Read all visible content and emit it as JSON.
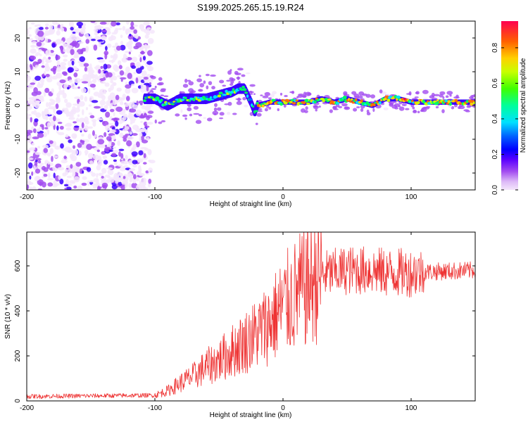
{
  "title": "S199.2025.265.15.19.R24",
  "chart_data": [
    {
      "type": "heatmap",
      "name": "spectrogram",
      "xlabel": "Height of straight line (km)",
      "ylabel": "Frequency (Hz)",
      "xlim": [
        -200,
        150
      ],
      "ylim": [
        -25,
        25
      ],
      "xticks": [
        -200,
        -100,
        0,
        100
      ],
      "yticks": [
        -20,
        -10,
        0,
        10,
        20
      ],
      "colorbar": {
        "label": "Normalized spectral amplitude",
        "range": [
          0,
          0.95
        ],
        "ticks": [
          0.0,
          0.2,
          0.4,
          0.6,
          0.8
        ],
        "colors": [
          "#f4e6fb",
          "#a24cf0",
          "#3b00ff",
          "#0064ff",
          "#00e0ff",
          "#00ff60",
          "#c8ff00",
          "#ffd000",
          "#ff7000",
          "#ff0050"
        ]
      },
      "ridge": {
        "x": [
          -110,
          -100,
          -90,
          -80,
          -70,
          -60,
          -50,
          -40,
          -35,
          -30,
          -25,
          -22,
          -20,
          -10,
          0,
          10,
          20,
          30,
          40,
          50,
          60,
          70,
          80,
          90,
          100,
          110,
          120,
          130,
          140,
          150
        ],
        "y": [
          2,
          2,
          0,
          2,
          2,
          2,
          3,
          4,
          5,
          5,
          1,
          -2,
          0,
          1,
          1,
          1,
          1,
          2,
          1,
          2,
          1,
          0,
          2,
          2,
          1,
          1,
          1,
          1,
          1,
          1
        ]
      }
    },
    {
      "type": "line",
      "name": "snr",
      "xlabel": "Height of straight line (km)",
      "ylabel": "SNR (10 * v/v)",
      "xlim": [
        -200,
        150
      ],
      "ylim": [
        0,
        750
      ],
      "xticks": [
        -200,
        -100,
        0,
        100
      ],
      "yticks": [
        0,
        200,
        400,
        600
      ],
      "color": "#ee3333",
      "trend": {
        "x": [
          -200,
          -100,
          -90,
          -80,
          -70,
          -60,
          -50,
          -40,
          -30,
          -20,
          -10,
          0,
          10,
          20,
          30,
          40,
          50,
          60,
          70,
          80,
          90,
          100,
          120,
          150
        ],
        "y": [
          20,
          25,
          45,
          80,
          110,
          150,
          180,
          220,
          260,
          300,
          350,
          420,
          470,
          520,
          560,
          570,
          580,
          580,
          580,
          570,
          570,
          570,
          575,
          580
        ]
      }
    }
  ]
}
